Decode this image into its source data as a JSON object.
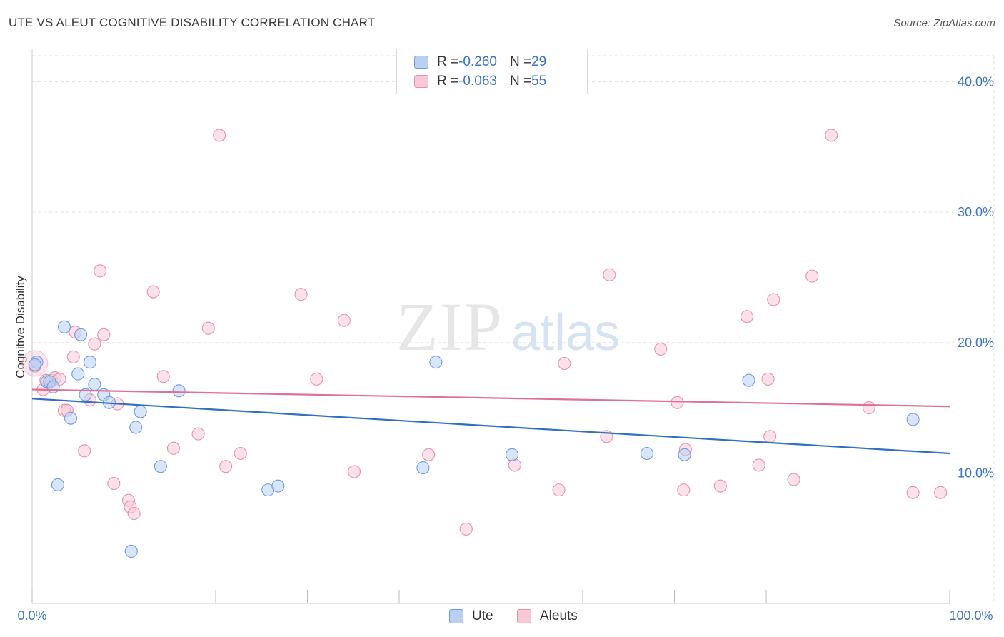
{
  "title": "UTE VS ALEUT COGNITIVE DISABILITY CORRELATION CHART",
  "source": "Source: ZipAtlas.com",
  "watermark": {
    "zip": "ZIP",
    "atlas": "atlas"
  },
  "legend_stats": [
    {
      "r_label": "R = ",
      "r_value": "-0.260",
      "n_label": "N = ",
      "n_value": "29",
      "color": "#6f9be0",
      "fill": "#b9d0f3"
    },
    {
      "r_label": "R = ",
      "r_value": "-0.063",
      "n_label": "N = ",
      "n_value": "55",
      "color": "#e890ae",
      "fill": "#f8c8d7"
    }
  ],
  "chart_data": {
    "type": "scatter",
    "title": "UTE VS ALEUT COGNITIVE DISABILITY CORRELATION CHART",
    "ylabel": "Cognitive Disability",
    "xlabel": "",
    "xlim": [
      0,
      100
    ],
    "ylim": [
      0,
      42
    ],
    "x_tick_labels": [
      "0.0%",
      "100.0%"
    ],
    "y_ticks": [
      10,
      20,
      30,
      40
    ],
    "y_tick_labels": [
      "10.0%",
      "20.0%",
      "30.0%",
      "40.0%"
    ],
    "grid": true,
    "legend_position": "bottom-center",
    "series": [
      {
        "name": "Ute",
        "color": "#6f9be0",
        "fill": "#b9d0f3",
        "line_color": "#2f6fc4",
        "trend": [
          [
            0,
            15.7
          ],
          [
            100,
            11.5
          ]
        ],
        "points": [
          [
            0.5,
            18.5
          ],
          [
            1.6,
            17.0
          ],
          [
            1.9,
            17.0
          ],
          [
            2.3,
            16.6
          ],
          [
            2.8,
            9.1
          ],
          [
            3.5,
            21.2
          ],
          [
            4.2,
            14.2
          ],
          [
            5.0,
            17.6
          ],
          [
            5.3,
            20.6
          ],
          [
            5.8,
            16.0
          ],
          [
            6.3,
            18.5
          ],
          [
            6.8,
            16.8
          ],
          [
            7.8,
            16.0
          ],
          [
            8.4,
            15.4
          ],
          [
            10.8,
            4.0
          ],
          [
            11.3,
            13.5
          ],
          [
            11.8,
            14.7
          ],
          [
            14.0,
            10.5
          ],
          [
            16.0,
            16.3
          ],
          [
            25.7,
            8.7
          ],
          [
            26.8,
            9.0
          ],
          [
            42.6,
            10.4
          ],
          [
            44.0,
            18.5
          ],
          [
            52.3,
            11.4
          ],
          [
            67.0,
            11.5
          ],
          [
            71.1,
            11.4
          ],
          [
            78.1,
            17.1
          ],
          [
            96.0,
            14.1
          ],
          [
            0.3,
            18.3
          ]
        ]
      },
      {
        "name": "Aleuts",
        "color": "#e890ae",
        "fill": "#f8c8d7",
        "line_color": "#e07096",
        "trend": [
          [
            0,
            16.4
          ],
          [
            100,
            15.1
          ]
        ],
        "points": [
          [
            0.3,
            18.2
          ],
          [
            1.2,
            16.4
          ],
          [
            1.5,
            17.1
          ],
          [
            2.1,
            17.1
          ],
          [
            2.5,
            17.3
          ],
          [
            3.0,
            17.2
          ],
          [
            3.5,
            14.8
          ],
          [
            3.8,
            14.8
          ],
          [
            4.5,
            18.9
          ],
          [
            4.7,
            20.8
          ],
          [
            5.7,
            11.7
          ],
          [
            6.3,
            15.6
          ],
          [
            6.8,
            19.9
          ],
          [
            7.4,
            25.5
          ],
          [
            7.8,
            20.6
          ],
          [
            8.9,
            9.2
          ],
          [
            9.3,
            15.3
          ],
          [
            10.5,
            7.9
          ],
          [
            10.7,
            7.4
          ],
          [
            11.1,
            6.9
          ],
          [
            13.2,
            23.9
          ],
          [
            14.3,
            17.4
          ],
          [
            15.4,
            11.9
          ],
          [
            18.1,
            13.0
          ],
          [
            19.2,
            21.1
          ],
          [
            20.4,
            35.9
          ],
          [
            21.1,
            10.5
          ],
          [
            22.7,
            11.5
          ],
          [
            29.3,
            23.7
          ],
          [
            31.0,
            17.2
          ],
          [
            34.0,
            21.7
          ],
          [
            35.1,
            10.1
          ],
          [
            43.2,
            11.4
          ],
          [
            47.3,
            5.7
          ],
          [
            52.6,
            10.6
          ],
          [
            57.4,
            8.7
          ],
          [
            58.0,
            18.4
          ],
          [
            62.6,
            12.8
          ],
          [
            62.9,
            25.2
          ],
          [
            68.5,
            19.5
          ],
          [
            70.3,
            15.4
          ],
          [
            71.0,
            8.7
          ],
          [
            71.2,
            11.8
          ],
          [
            75.0,
            9.0
          ],
          [
            77.9,
            22.0
          ],
          [
            79.2,
            10.6
          ],
          [
            80.2,
            17.2
          ],
          [
            80.4,
            12.8
          ],
          [
            80.8,
            23.3
          ],
          [
            83.0,
            9.5
          ],
          [
            85.0,
            25.1
          ],
          [
            87.1,
            35.9
          ],
          [
            91.2,
            15.0
          ],
          [
            96.0,
            8.5
          ],
          [
            99.0,
            8.5
          ]
        ]
      }
    ]
  }
}
